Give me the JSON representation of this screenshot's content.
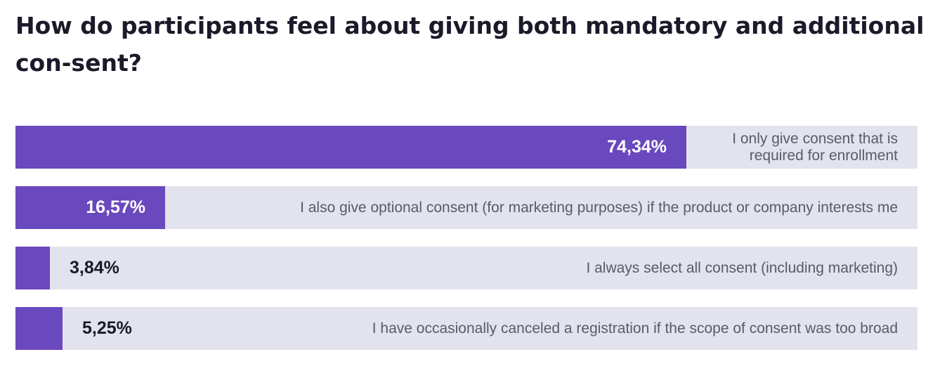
{
  "title": "How do participants feel about giving both mandatory and additional con-sent?",
  "chart_data": {
    "type": "bar",
    "orientation": "horizontal",
    "max": 100,
    "bar_color": "#6a48bd",
    "track_color": "#e2e3ed",
    "bars": [
      {
        "value_label": "74,34%",
        "label": "I only give consent that is required for enrollment",
        "value": 74.34
      },
      {
        "value_label": "16,57%",
        "label": "I also give optional consent (for marketing purposes) if the product or company interests me",
        "value": 16.57
      },
      {
        "value_label": "3,84%",
        "label": "I always select all consent (including marketing)",
        "value": 3.84
      },
      {
        "value_label": "5,25%",
        "label": "I have occasionally canceled a registration if the scope of consent was too broad",
        "value": 5.25
      }
    ]
  }
}
